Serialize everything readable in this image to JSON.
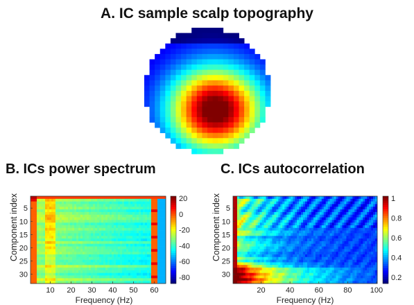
{
  "panels": {
    "a_title": "A. IC sample scalp topography",
    "b_title": "B. ICs power spectrum",
    "c_title": "C. ICs  autocorrelation"
  },
  "chart_data": [
    {
      "type": "heatmap",
      "title": "A. IC sample scalp topography",
      "description_value": "scalp topography of one independent component; maximum (dark red) centered slightly below middle, minimum (blue) at the rim",
      "grid": {
        "rows": 24,
        "cols": 24
      },
      "peak": {
        "cx": 0.57,
        "cy": 0.66,
        "spread": 0.27
      },
      "colormap": "jet"
    },
    {
      "type": "heatmap",
      "title": "B. ICs power spectrum",
      "xlabel": "Frequency (Hz)",
      "ylabel": "Component index",
      "xlim": [
        1,
        65
      ],
      "ylim": [
        1,
        33
      ],
      "xticks": [
        10,
        20,
        30,
        40,
        50,
        60
      ],
      "yticks": [
        5,
        10,
        15,
        20,
        25,
        30
      ],
      "colorbar": {
        "ticks": [
          "20",
          "0",
          "-20",
          "-40",
          "-60",
          "-80"
        ],
        "range": [
          -85,
          22
        ]
      },
      "components": 33,
      "frequencies": 65,
      "line_noise_hz": 60,
      "colormap": "jet"
    },
    {
      "type": "heatmap",
      "title": "C. ICs  autocorrelation",
      "xlabel": "Frequency (Hz)",
      "ylabel": "Component index",
      "xlim": [
        1,
        100
      ],
      "ylim": [
        1,
        33
      ],
      "xticks": [
        20,
        40,
        60,
        80,
        100
      ],
      "yticks": [
        5,
        10,
        15,
        20,
        25,
        30
      ],
      "colorbar": {
        "ticks": [
          "1",
          "0.8",
          "0.6",
          "0.4",
          "0.2"
        ],
        "range": [
          0.1,
          1.0
        ]
      },
      "components": 33,
      "lags": 100,
      "colormap": "jet"
    }
  ]
}
